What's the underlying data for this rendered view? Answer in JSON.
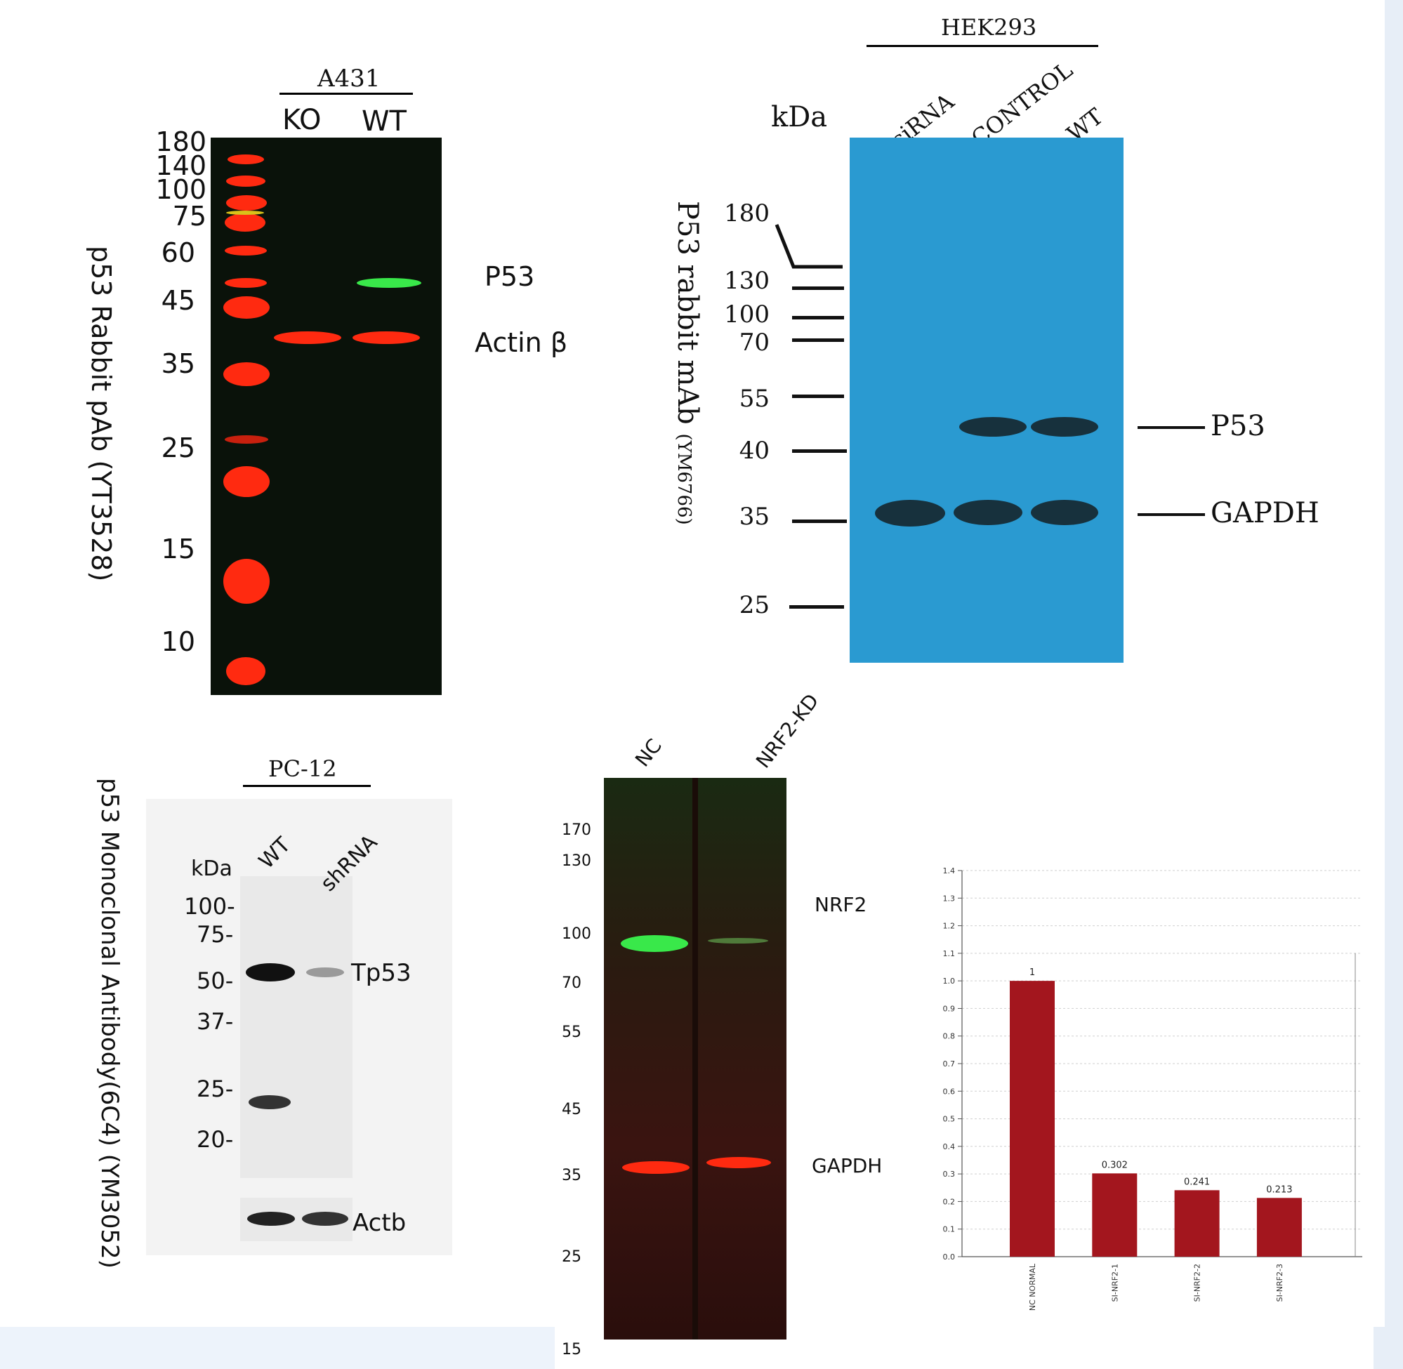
{
  "panel_a": {
    "cell_line": "A431",
    "lanes": [
      "KO",
      "WT"
    ],
    "markers": [
      "180",
      "140",
      "100",
      "75",
      "60",
      "45",
      "35",
      "25",
      "15",
      "10"
    ],
    "bands": [
      "P53",
      "Actin β"
    ],
    "antibody": "p53 Rabbit pAb (YT3528)"
  },
  "panel_b": {
    "cell_line": "HEK293",
    "unit": "kDa",
    "lanes": [
      "siRNA",
      "CONTROL",
      "WT"
    ],
    "markers": [
      "180",
      "130",
      "100",
      "70",
      "55",
      "40",
      "35",
      "25"
    ],
    "bands": [
      "P53",
      "GAPDH"
    ],
    "antibody_main": "P53 rabbit mAb",
    "antibody_code": "(YM6766)"
  },
  "panel_c": {
    "cell_line": "PC-12",
    "unit": "kDa",
    "lanes": [
      "WT",
      "shRNA"
    ],
    "markers": [
      "100-",
      "75-",
      "50-",
      "37-",
      "25-",
      "20-"
    ],
    "bands": [
      "Tp53",
      "Actb"
    ],
    "antibody": "p53 Monoclonal Antibody(6C4) (YM3052)"
  },
  "panel_d": {
    "lanes": [
      "NC",
      "NRF2-KD"
    ],
    "markers": [
      "170",
      "130",
      "100",
      "70",
      "55",
      "45",
      "35",
      "25",
      "15"
    ],
    "bands": [
      "NRF2",
      "GAPDH"
    ]
  },
  "chart_data": {
    "type": "bar",
    "categories": [
      "NC NORMAL",
      "SI-NRF2-1",
      "SI-NRF2-2",
      "SI-NRF2-3"
    ],
    "values": [
      1.0,
      0.302,
      0.241,
      0.213
    ],
    "data_labels": [
      "1",
      "0.302",
      "0.241",
      "0.213"
    ],
    "title": "",
    "xlabel": "",
    "ylabel": "",
    "ylim": [
      0,
      1.4
    ],
    "yticks": [
      "0.0",
      "0.1",
      "0.2",
      "0.3",
      "0.4",
      "0.5",
      "0.6",
      "0.7",
      "0.8",
      "0.9",
      "1.0",
      "1.1",
      "1.2",
      "1.3",
      "1.4"
    ],
    "grid": true,
    "bar_color": "#a3161e"
  },
  "colors": {
    "red_band": "#ff2a10",
    "green_band": "#39e84a",
    "blue_membrane": "#2a9ad1"
  }
}
